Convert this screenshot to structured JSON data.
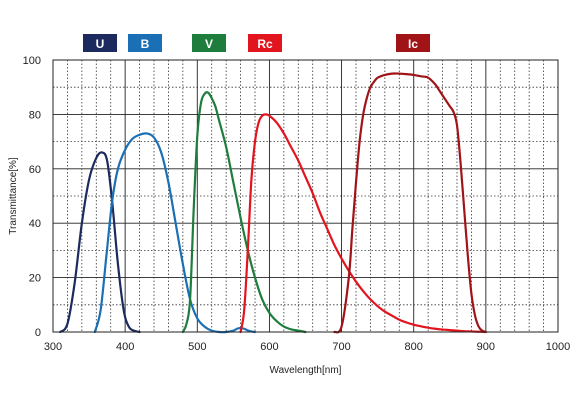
{
  "chart_data": {
    "type": "line",
    "title": "",
    "xlabel": "Wavelength[nm]",
    "ylabel": "Transmittance[%]",
    "xlim": [
      300,
      1000
    ],
    "ylim": [
      0,
      100
    ],
    "xticks": [
      300,
      400,
      500,
      600,
      700,
      800,
      900,
      1000
    ],
    "yticks": [
      0,
      20,
      40,
      60,
      80,
      100
    ],
    "grid": "major solid, minor dashed",
    "legend_position": "top",
    "series": [
      {
        "name": "U",
        "color": "#1c2a5e",
        "x": [
          310,
          320,
          330,
          340,
          350,
          360,
          368,
          375,
          382,
          390,
          398,
          405,
          412,
          420
        ],
        "y": [
          0,
          3,
          18,
          40,
          56,
          64,
          66,
          63,
          48,
          25,
          8,
          2,
          0.5,
          0
        ]
      },
      {
        "name": "B",
        "color": "#1b6fb5",
        "x": [
          358,
          366,
          374,
          382,
          390,
          400,
          410,
          420,
          430,
          440,
          450,
          460,
          470,
          480,
          490,
          500,
          510,
          520,
          530,
          540,
          550,
          555,
          560,
          565,
          570,
          575,
          580
        ],
        "y": [
          0,
          8,
          28,
          48,
          60,
          67,
          71,
          72.5,
          73,
          71.5,
          66,
          55,
          40,
          25,
          12,
          5,
          2,
          0.5,
          0,
          0,
          0.5,
          1.2,
          1.5,
          1.2,
          0.6,
          0.2,
          0
        ]
      },
      {
        "name": "V",
        "color": "#1e7d3c",
        "x": [
          480,
          485,
          490,
          495,
          500,
          505,
          510,
          515,
          520,
          525,
          530,
          540,
          550,
          560,
          570,
          580,
          590,
          600,
          610,
          620,
          630,
          640,
          650
        ],
        "y": [
          0,
          3,
          12,
          45,
          72,
          84,
          87.5,
          88,
          86,
          83,
          78,
          68,
          55,
          42,
          30,
          20,
          12,
          7,
          4,
          2,
          1,
          0.5,
          0
        ]
      },
      {
        "name": "Rc",
        "color": "#e2141e",
        "x": [
          560,
          565,
          570,
          575,
          580,
          585,
          590,
          595,
          600,
          610,
          620,
          630,
          640,
          650,
          660,
          670,
          680,
          690,
          700,
          710,
          720,
          730,
          740,
          750,
          760,
          770,
          780,
          790,
          800,
          810,
          820,
          830,
          840,
          850,
          860,
          870,
          880,
          890,
          900
        ],
        "y": [
          0,
          8,
          30,
          56,
          70,
          77,
          79.5,
          80,
          79.5,
          77,
          73,
          68,
          63,
          57,
          51,
          44,
          38,
          32,
          27,
          22.5,
          18.5,
          15,
          12,
          9.5,
          7.5,
          6,
          4.5,
          3.5,
          2.7,
          2.1,
          1.6,
          1.2,
          0.9,
          0.7,
          0.5,
          0.3,
          0.2,
          0.1,
          0
        ]
      },
      {
        "name": "Ic",
        "color": "#a01418",
        "x": [
          690,
          700,
          710,
          715,
          720,
          725,
          730,
          735,
          740,
          745,
          750,
          760,
          770,
          780,
          790,
          800,
          810,
          820,
          830,
          835,
          840,
          845,
          850,
          855,
          860,
          865,
          870,
          875,
          880,
          885,
          890,
          895,
          900
        ],
        "y": [
          0,
          2,
          20,
          38,
          55,
          70,
          80,
          86,
          90,
          92,
          93.5,
          94.5,
          95,
          95,
          94.8,
          94.5,
          94,
          93.5,
          91,
          89,
          87,
          85,
          83,
          81,
          76,
          62,
          45,
          28,
          14,
          6,
          2,
          0.5,
          0
        ]
      }
    ]
  }
}
